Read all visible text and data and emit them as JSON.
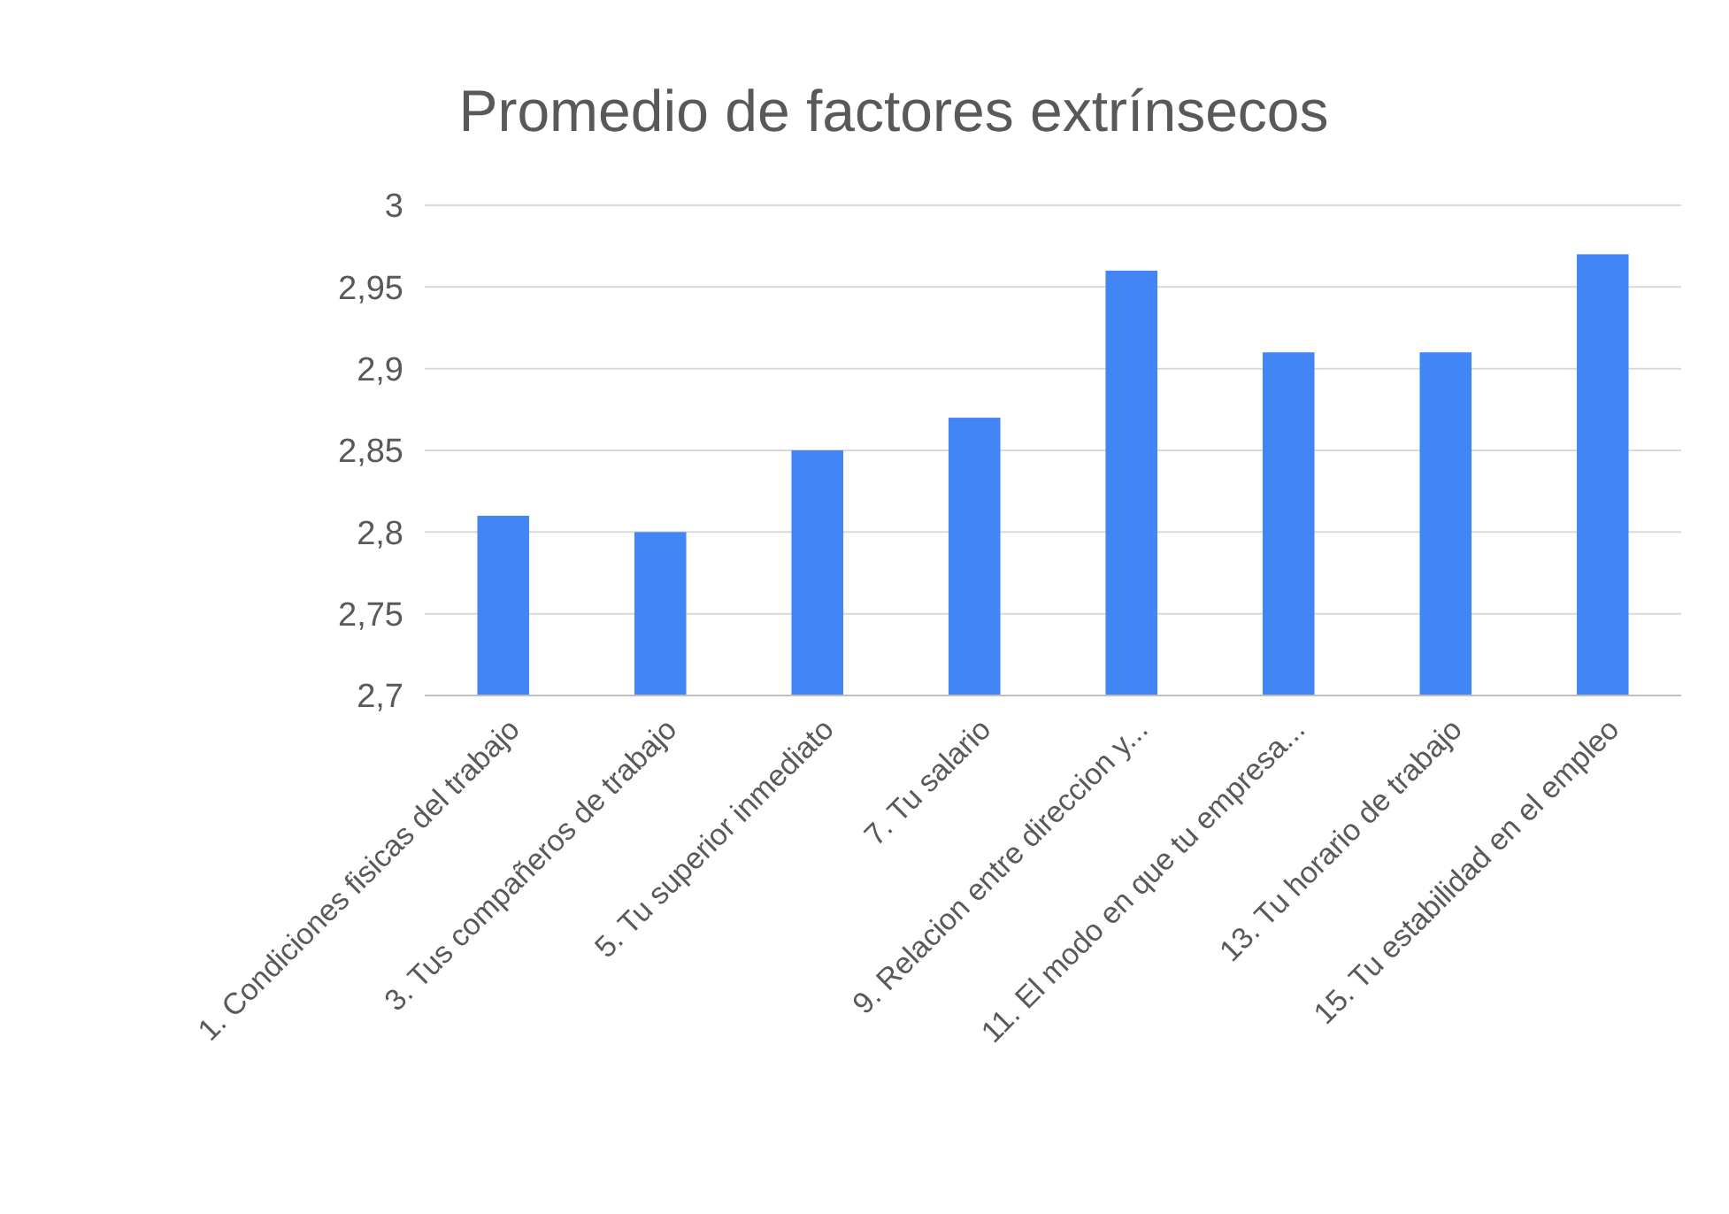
{
  "chart_data": {
    "type": "bar",
    "title": "Promedio de factores extrínsecos",
    "categories": [
      "1. Condiciones fisicas del trabajo",
      "3. Tus compañeros de trabajo",
      "5. Tu superior inmediato",
      "7. Tu salario",
      "9. Relacion entre direccion y...",
      "11. El modo en que tu empresa...",
      "13. Tu horario de trabajo",
      "15. Tu estabilidad en el empleo"
    ],
    "values": [
      2.81,
      2.8,
      2.85,
      2.87,
      2.96,
      2.91,
      2.91,
      2.97
    ],
    "color": "#4285f4",
    "ylim": [
      2.7,
      3
    ],
    "yticks": [
      {
        "value": 2.7,
        "label": "2,7"
      },
      {
        "value": 2.75,
        "label": "2,75"
      },
      {
        "value": 2.8,
        "label": "2,8"
      },
      {
        "value": 2.85,
        "label": "2,85"
      },
      {
        "value": 2.9,
        "label": "2,9"
      },
      {
        "value": 2.95,
        "label": "2,95"
      },
      3
    ],
    "grid": true
  }
}
